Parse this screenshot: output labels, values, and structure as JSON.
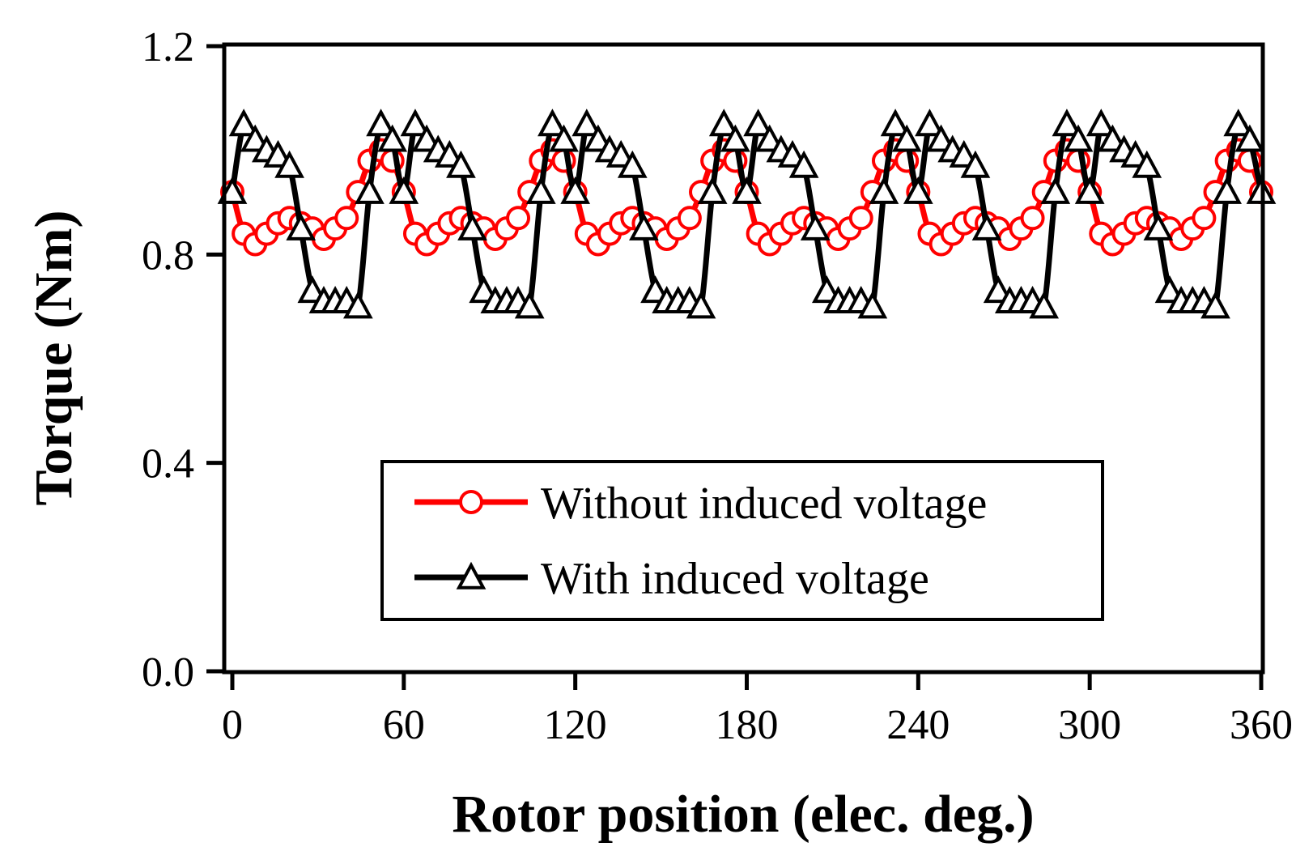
{
  "chart_data": {
    "type": "line",
    "title": "",
    "xlabel": "Rotor position (elec. deg.)",
    "ylabel": "Torque (Nm)",
    "xlim": [
      0,
      360
    ],
    "ylim": [
      0,
      1.2
    ],
    "xticks": [
      0,
      60,
      120,
      180,
      240,
      300,
      360
    ],
    "yticks": [
      0.0,
      0.4,
      0.8,
      1.2
    ],
    "xtick_labels": [
      "0",
      "60",
      "120",
      "180",
      "240",
      "300",
      "360"
    ],
    "ytick_labels": [
      "0.0",
      "0.4",
      "0.8",
      "1.2"
    ],
    "grid": false,
    "legend_position": "lower-center",
    "period_deg": 60,
    "series": [
      {
        "name": "Without induced voltage",
        "color": "#ff0000",
        "marker": "circle",
        "x_one_period": [
          0,
          4,
          8,
          12,
          16,
          20,
          24,
          28,
          32,
          36,
          40,
          44,
          48,
          52,
          56,
          60
        ],
        "y_one_period": [
          0.92,
          0.84,
          0.82,
          0.84,
          0.86,
          0.87,
          0.86,
          0.85,
          0.83,
          0.85,
          0.87,
          0.92,
          0.98,
          1.0,
          0.98,
          0.92
        ]
      },
      {
        "name": "With induced voltage",
        "color": "#000000",
        "marker": "triangle",
        "x_one_period": [
          0,
          4,
          8,
          12,
          16,
          20,
          24,
          28,
          32,
          36,
          40,
          44,
          48,
          52,
          56,
          60
        ],
        "y_one_period": [
          0.92,
          1.05,
          1.02,
          1.0,
          0.99,
          0.97,
          0.85,
          0.73,
          0.71,
          0.71,
          0.71,
          0.7,
          0.92,
          1.05,
          1.02,
          0.92
        ]
      }
    ]
  }
}
